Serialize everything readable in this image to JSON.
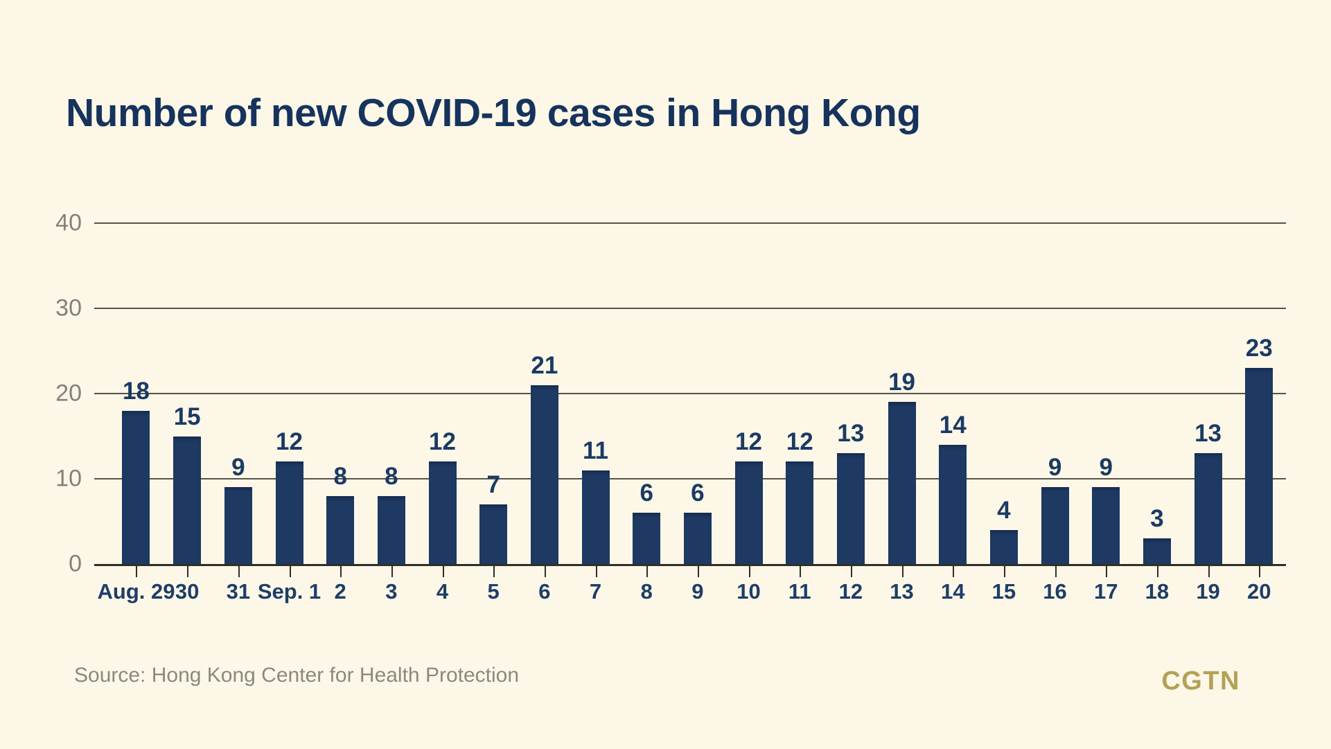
{
  "chart_data": {
    "type": "bar",
    "title": "Number of new COVID-19 cases in Hong Kong",
    "categories": [
      "Aug. 29",
      "30",
      "31",
      "Sep. 1",
      "2",
      "3",
      "4",
      "5",
      "6",
      "7",
      "8",
      "9",
      "10",
      "11",
      "12",
      "13",
      "14",
      "15",
      "16",
      "17",
      "18",
      "19",
      "20"
    ],
    "values": [
      18,
      15,
      9,
      12,
      8,
      8,
      12,
      7,
      21,
      11,
      6,
      6,
      12,
      12,
      13,
      19,
      14,
      4,
      9,
      9,
      3,
      13,
      23
    ],
    "xlabel": "",
    "ylabel": "",
    "ylim": [
      0,
      40
    ],
    "yticks": [
      0,
      10,
      20,
      30,
      40
    ],
    "grid": "horizontal-only",
    "legend": "none",
    "value_labels_shown": true,
    "bar_color": "#1e3962",
    "background_color": "#fcf7e7",
    "gridline_color": "#55534b",
    "axis_line_color": "#2f2e28",
    "ytick_label_color": "#83817a",
    "xtick_label_color": "#1e3d68",
    "value_label_color": "#1b3a64",
    "title_color": "#16335c"
  },
  "footer": {
    "source": "Source: Hong Kong Center for Health Protection",
    "logo": "CGTN",
    "logo_color": "#b3a156"
  }
}
